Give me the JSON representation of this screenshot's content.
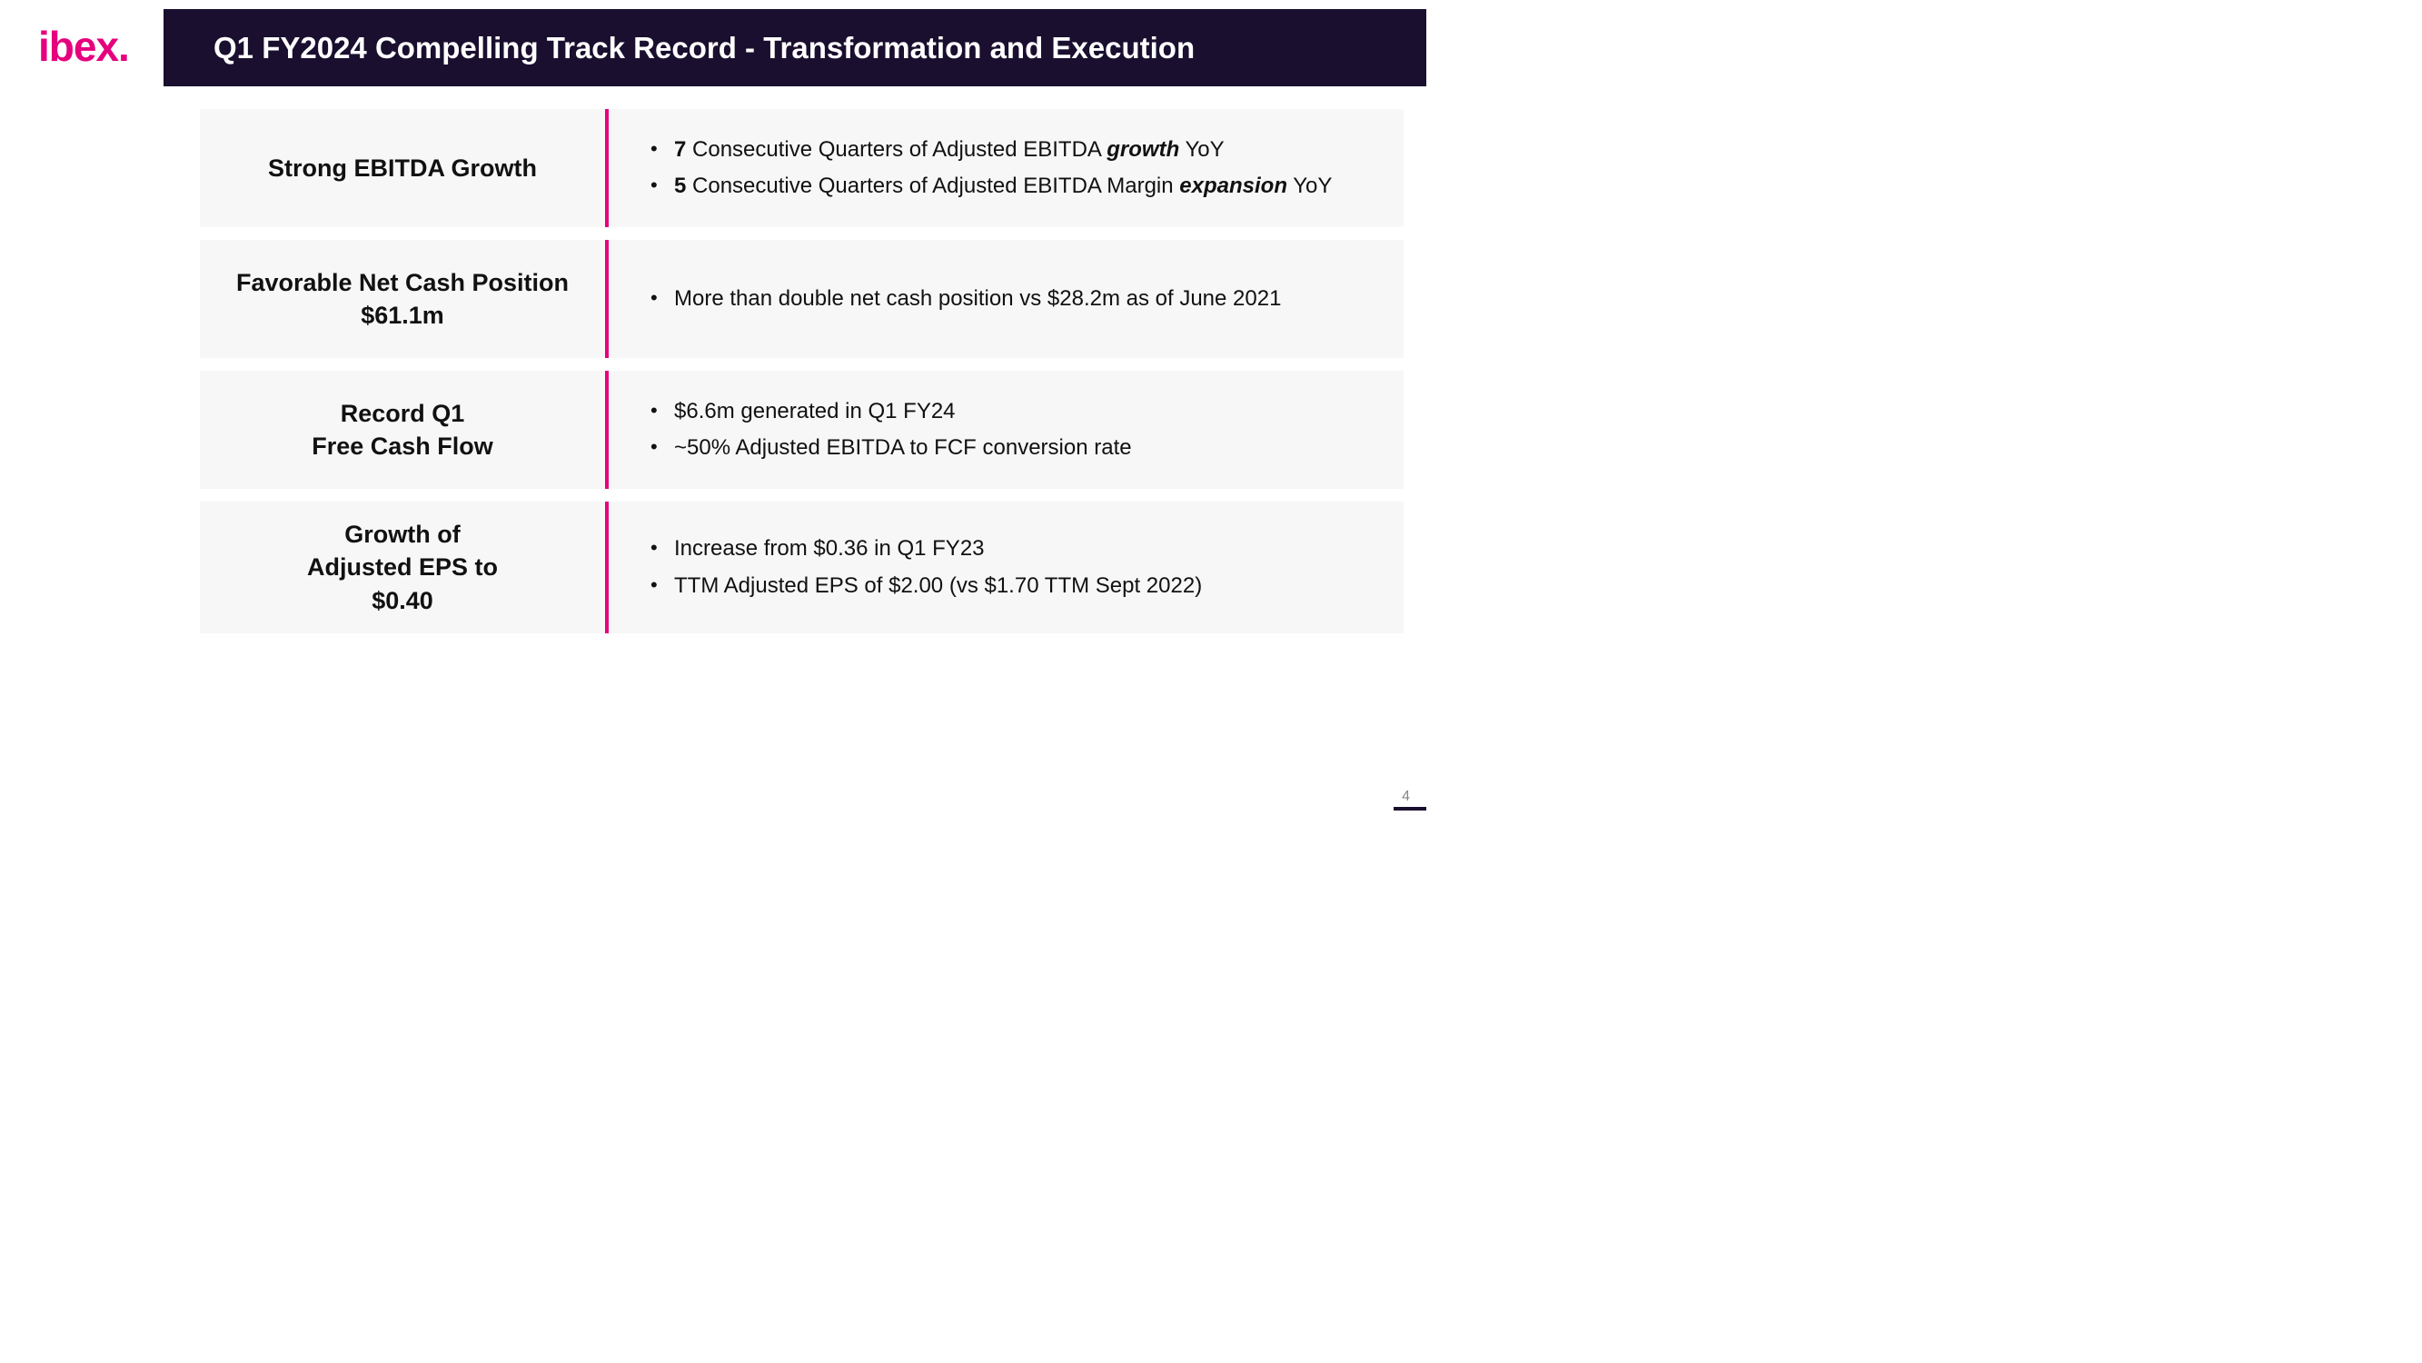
{
  "brand": {
    "logo_text": "ibex."
  },
  "colors": {
    "brand_pink": "#e6007e",
    "header_bg": "#1a0f2e",
    "row_bg": "#f7f7f7",
    "text": "#111111",
    "page_bg": "#ffffff"
  },
  "typography": {
    "title_fontsize_pt": 25,
    "row_heading_fontsize_pt": 20,
    "bullet_fontsize_pt": 18,
    "logo_fontsize_pt": 35
  },
  "header": {
    "title": "Q1 FY2024 Compelling Track Record - Transformation and Execution"
  },
  "rows": [
    {
      "heading": "Strong EBITDA Growth",
      "bullets": [
        {
          "segments": [
            {
              "text": "7",
              "b": true
            },
            {
              "text": " Consecutive Quarters of Adjusted EBITDA "
            },
            {
              "text": "growth",
              "bi": true
            },
            {
              "text": " YoY"
            }
          ]
        },
        {
          "segments": [
            {
              "text": "5",
              "b": true
            },
            {
              "text": " Consecutive Quarters of Adjusted EBITDA Margin "
            },
            {
              "text": "expansion",
              "bi": true
            },
            {
              "text": " YoY"
            }
          ]
        }
      ]
    },
    {
      "heading": "Favorable Net Cash Position\n$61.1m",
      "bullets": [
        {
          "segments": [
            {
              "text": "More than double net cash position vs $28.2m as of June 2021"
            }
          ]
        }
      ]
    },
    {
      "heading": "Record Q1\nFree Cash Flow",
      "bullets": [
        {
          "segments": [
            {
              "text": "$6.6m generated in Q1 FY24"
            }
          ]
        },
        {
          "segments": [
            {
              "text": "~50% Adjusted EBITDA to FCF conversion rate"
            }
          ]
        }
      ]
    },
    {
      "heading": "Growth of\nAdjusted EPS to\n$0.40",
      "bullets": [
        {
          "segments": [
            {
              "text": "Increase from $0.36 in Q1 FY23"
            }
          ]
        },
        {
          "segments": [
            {
              "text": "TTM Adjusted EPS of $2.00 (vs $1.70 TTM Sept 2022)"
            }
          ]
        }
      ]
    }
  ],
  "page_number": "4"
}
